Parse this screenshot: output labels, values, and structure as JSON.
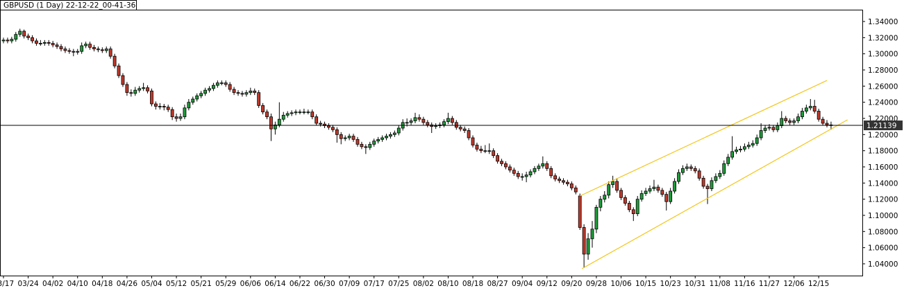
{
  "chart_data": {
    "type": "candlestick",
    "title": "GBPUSD (1 Day) 22-12-22_00-41-36",
    "up_color": "#1f9b3a",
    "down_color": "#c0392b",
    "ylim": [
      1.0254,
      1.3546
    ],
    "yticks": [
      {
        "value": 1.04,
        "label": "1.04000"
      },
      {
        "value": 1.06,
        "label": "1.06000"
      },
      {
        "value": 1.08,
        "label": "1.08000"
      },
      {
        "value": 1.1,
        "label": "1.10000"
      },
      {
        "value": 1.12,
        "label": "1.12000"
      },
      {
        "value": 1.14,
        "label": "1.14000"
      },
      {
        "value": 1.16,
        "label": "1.16000"
      },
      {
        "value": 1.18,
        "label": "1.18000"
      },
      {
        "value": 1.2,
        "label": "1.20000"
      },
      {
        "value": 1.22,
        "label": "1.22000"
      },
      {
        "value": 1.24,
        "label": "1.24000"
      },
      {
        "value": 1.26,
        "label": "1.26000"
      },
      {
        "value": 1.28,
        "label": "1.28000"
      },
      {
        "value": 1.3,
        "label": "1.30000"
      },
      {
        "value": 1.32,
        "label": "1.32000"
      },
      {
        "value": 1.34,
        "label": "1.34000"
      }
    ],
    "last_price": 1.21139,
    "channel_color": "#f5c518",
    "channel": [
      {
        "x": [
          140,
          200
        ],
        "y": [
          1.124,
          1.267
        ]
      },
      {
        "x": [
          140.5,
          205
        ],
        "y": [
          1.034,
          1.2183
        ]
      }
    ],
    "categories": [
      "03/17",
      null,
      null,
      null,
      null,
      null,
      "03/24",
      null,
      null,
      null,
      null,
      null,
      "04/02",
      null,
      null,
      null,
      null,
      null,
      "04/10",
      null,
      null,
      null,
      null,
      null,
      "04/18",
      null,
      null,
      null,
      null,
      null,
      "04/26",
      null,
      null,
      null,
      null,
      null,
      "05/04",
      null,
      null,
      null,
      null,
      null,
      "05/12",
      null,
      null,
      null,
      null,
      null,
      "05/21",
      null,
      null,
      null,
      null,
      null,
      "05/29",
      null,
      null,
      null,
      null,
      null,
      "06/06",
      null,
      null,
      null,
      null,
      null,
      "06/14",
      null,
      null,
      null,
      null,
      null,
      "06/22",
      null,
      null,
      null,
      null,
      null,
      "06/30",
      null,
      null,
      null,
      null,
      null,
      "07/09",
      null,
      null,
      null,
      null,
      null,
      "07/17",
      null,
      null,
      null,
      null,
      null,
      "07/25",
      null,
      null,
      null,
      null,
      null,
      "08/02",
      null,
      null,
      null,
      null,
      null,
      "08/10",
      null,
      null,
      null,
      null,
      null,
      "08/18",
      null,
      null,
      null,
      null,
      null,
      "08/27",
      null,
      null,
      null,
      null,
      null,
      "09/04",
      null,
      null,
      null,
      null,
      null,
      "09/12",
      null,
      null,
      null,
      null,
      null,
      "09/20",
      null,
      null,
      null,
      null,
      null,
      "09/28",
      null,
      null,
      null,
      null,
      null,
      "10/06",
      null,
      null,
      null,
      null,
      null,
      "10/15",
      null,
      null,
      null,
      null,
      null,
      "10/23",
      null,
      null,
      null,
      null,
      null,
      "10/31",
      null,
      null,
      null,
      null,
      null,
      "11/08",
      null,
      null,
      null,
      null,
      null,
      "11/16",
      null,
      null,
      null,
      null,
      null,
      "11/27",
      null,
      null,
      null,
      null,
      null,
      "12/06",
      null,
      null,
      null,
      null,
      null,
      "12/15",
      null,
      null,
      null
    ],
    "ohlc": [
      [
        1.316,
        1.32,
        1.313,
        1.317
      ],
      [
        1.317,
        1.32,
        1.313,
        1.316
      ],
      [
        1.316,
        1.321,
        1.313,
        1.318
      ],
      [
        1.318,
        1.327,
        1.315,
        1.324
      ],
      [
        1.324,
        1.331,
        1.321,
        1.328
      ],
      [
        1.328,
        1.33,
        1.319,
        1.322
      ],
      [
        1.322,
        1.325,
        1.317,
        1.32
      ],
      [
        1.32,
        1.323,
        1.313,
        1.316
      ],
      [
        1.316,
        1.319,
        1.31,
        1.313
      ],
      [
        1.313,
        1.317,
        1.31,
        1.313
      ],
      [
        1.313,
        1.317,
        1.31,
        1.314
      ],
      [
        1.314,
        1.317,
        1.31,
        1.313
      ],
      [
        1.313,
        1.316,
        1.308,
        1.311
      ],
      [
        1.311,
        1.314,
        1.306,
        1.309
      ],
      [
        1.309,
        1.312,
        1.303,
        1.306
      ],
      [
        1.306,
        1.309,
        1.301,
        1.304
      ],
      [
        1.304,
        1.307,
        1.3,
        1.303
      ],
      [
        1.303,
        1.306,
        1.297,
        1.302
      ],
      [
        1.302,
        1.306,
        1.299,
        1.303
      ],
      [
        1.303,
        1.314,
        1.3,
        1.31
      ],
      [
        1.31,
        1.315,
        1.307,
        1.312
      ],
      [
        1.312,
        1.315,
        1.305,
        1.308
      ],
      [
        1.308,
        1.311,
        1.303,
        1.306
      ],
      [
        1.306,
        1.309,
        1.302,
        1.305
      ],
      [
        1.305,
        1.308,
        1.301,
        1.304
      ],
      [
        1.304,
        1.309,
        1.301,
        1.306
      ],
      [
        1.306,
        1.309,
        1.294,
        1.297
      ],
      [
        1.297,
        1.3,
        1.282,
        1.285
      ],
      [
        1.285,
        1.288,
        1.27,
        1.273
      ],
      [
        1.273,
        1.276,
        1.259,
        1.262
      ],
      [
        1.262,
        1.265,
        1.248,
        1.252
      ],
      [
        1.252,
        1.256,
        1.247,
        1.251
      ],
      [
        1.251,
        1.259,
        1.248,
        1.255
      ],
      [
        1.255,
        1.26,
        1.252,
        1.257
      ],
      [
        1.257,
        1.264,
        1.254,
        1.258
      ],
      [
        1.258,
        1.261,
        1.251,
        1.254
      ],
      [
        1.254,
        1.257,
        1.235,
        1.238
      ],
      [
        1.238,
        1.241,
        1.231,
        1.235
      ],
      [
        1.235,
        1.239,
        1.231,
        1.235
      ],
      [
        1.235,
        1.238,
        1.23,
        1.234
      ],
      [
        1.234,
        1.237,
        1.228,
        1.231
      ],
      [
        1.231,
        1.234,
        1.218,
        1.222
      ],
      [
        1.222,
        1.226,
        1.216,
        1.22
      ],
      [
        1.22,
        1.226,
        1.217,
        1.222
      ],
      [
        1.222,
        1.237,
        1.219,
        1.233
      ],
      [
        1.233,
        1.244,
        1.23,
        1.24
      ],
      [
        1.24,
        1.247,
        1.237,
        1.244
      ],
      [
        1.244,
        1.251,
        1.241,
        1.248
      ],
      [
        1.248,
        1.254,
        1.245,
        1.251
      ],
      [
        1.251,
        1.258,
        1.248,
        1.255
      ],
      [
        1.255,
        1.26,
        1.252,
        1.257
      ],
      [
        1.257,
        1.264,
        1.254,
        1.261
      ],
      [
        1.261,
        1.267,
        1.258,
        1.264
      ],
      [
        1.264,
        1.267,
        1.261,
        1.264
      ],
      [
        1.264,
        1.267,
        1.259,
        1.262
      ],
      [
        1.262,
        1.265,
        1.253,
        1.256
      ],
      [
        1.256,
        1.259,
        1.249,
        1.252
      ],
      [
        1.252,
        1.255,
        1.248,
        1.251
      ],
      [
        1.251,
        1.254,
        1.247,
        1.25
      ],
      [
        1.25,
        1.255,
        1.247,
        1.252
      ],
      [
        1.252,
        1.258,
        1.249,
        1.254
      ],
      [
        1.254,
        1.257,
        1.249,
        1.252
      ],
      [
        1.252,
        1.255,
        1.233,
        1.236
      ],
      [
        1.236,
        1.239,
        1.225,
        1.228
      ],
      [
        1.228,
        1.231,
        1.219,
        1.222
      ],
      [
        1.222,
        1.226,
        1.192,
        1.207
      ],
      [
        1.207,
        1.216,
        1.2,
        1.212
      ],
      [
        1.212,
        1.24,
        1.209,
        1.219
      ],
      [
        1.219,
        1.228,
        1.216,
        1.224
      ],
      [
        1.224,
        1.229,
        1.221,
        1.226
      ],
      [
        1.226,
        1.23,
        1.223,
        1.227
      ],
      [
        1.227,
        1.231,
        1.224,
        1.228
      ],
      [
        1.228,
        1.231,
        1.225,
        1.228
      ],
      [
        1.228,
        1.232,
        1.225,
        1.228
      ],
      [
        1.228,
        1.231,
        1.225,
        1.228
      ],
      [
        1.228,
        1.231,
        1.219,
        1.222
      ],
      [
        1.222,
        1.225,
        1.211,
        1.214
      ],
      [
        1.214,
        1.217,
        1.21,
        1.213
      ],
      [
        1.213,
        1.216,
        1.208,
        1.211
      ],
      [
        1.211,
        1.214,
        1.206,
        1.209
      ],
      [
        1.209,
        1.212,
        1.203,
        1.206
      ],
      [
        1.206,
        1.209,
        1.19,
        1.2
      ],
      [
        1.2,
        1.203,
        1.188,
        1.195
      ],
      [
        1.195,
        1.199,
        1.192,
        1.196
      ],
      [
        1.196,
        1.201,
        1.193,
        1.198
      ],
      [
        1.198,
        1.201,
        1.191,
        1.194
      ],
      [
        1.194,
        1.197,
        1.185,
        1.188
      ],
      [
        1.188,
        1.191,
        1.182,
        1.185
      ],
      [
        1.185,
        1.188,
        1.176,
        1.184
      ],
      [
        1.184,
        1.191,
        1.181,
        1.188
      ],
      [
        1.188,
        1.195,
        1.185,
        1.192
      ],
      [
        1.192,
        1.197,
        1.189,
        1.194
      ],
      [
        1.194,
        1.199,
        1.191,
        1.196
      ],
      [
        1.196,
        1.201,
        1.193,
        1.198
      ],
      [
        1.198,
        1.203,
        1.195,
        1.2
      ],
      [
        1.2,
        1.205,
        1.197,
        1.202
      ],
      [
        1.202,
        1.211,
        1.199,
        1.208
      ],
      [
        1.208,
        1.219,
        1.205,
        1.215
      ],
      [
        1.215,
        1.22,
        1.21,
        1.215
      ],
      [
        1.215,
        1.22,
        1.212,
        1.217
      ],
      [
        1.217,
        1.227,
        1.214,
        1.221
      ],
      [
        1.221,
        1.225,
        1.216,
        1.219
      ],
      [
        1.219,
        1.222,
        1.212,
        1.215
      ],
      [
        1.215,
        1.218,
        1.209,
        1.212
      ],
      [
        1.212,
        1.215,
        1.202,
        1.21
      ],
      [
        1.21,
        1.214,
        1.207,
        1.211
      ],
      [
        1.211,
        1.215,
        1.208,
        1.212
      ],
      [
        1.212,
        1.219,
        1.209,
        1.216
      ],
      [
        1.216,
        1.227,
        1.213,
        1.22
      ],
      [
        1.22,
        1.223,
        1.212,
        1.215
      ],
      [
        1.215,
        1.218,
        1.206,
        1.209
      ],
      [
        1.209,
        1.212,
        1.204,
        1.207
      ],
      [
        1.207,
        1.21,
        1.202,
        1.205
      ],
      [
        1.205,
        1.208,
        1.193,
        1.196
      ],
      [
        1.196,
        1.199,
        1.184,
        1.187
      ],
      [
        1.187,
        1.19,
        1.179,
        1.182
      ],
      [
        1.182,
        1.186,
        1.177,
        1.18
      ],
      [
        1.18,
        1.187,
        1.177,
        1.18
      ],
      [
        1.18,
        1.189,
        1.176,
        1.18
      ],
      [
        1.18,
        1.183,
        1.171,
        1.174
      ],
      [
        1.174,
        1.177,
        1.164,
        1.167
      ],
      [
        1.167,
        1.17,
        1.161,
        1.164
      ],
      [
        1.164,
        1.167,
        1.157,
        1.16
      ],
      [
        1.16,
        1.163,
        1.153,
        1.156
      ],
      [
        1.156,
        1.159,
        1.149,
        1.152
      ],
      [
        1.152,
        1.155,
        1.145,
        1.148
      ],
      [
        1.148,
        1.152,
        1.143,
        1.148
      ],
      [
        1.148,
        1.154,
        1.141,
        1.15
      ],
      [
        1.15,
        1.157,
        1.147,
        1.154
      ],
      [
        1.154,
        1.161,
        1.151,
        1.158
      ],
      [
        1.158,
        1.164,
        1.155,
        1.161
      ],
      [
        1.161,
        1.173,
        1.158,
        1.164
      ],
      [
        1.164,
        1.167,
        1.155,
        1.158
      ],
      [
        1.158,
        1.161,
        1.146,
        1.149
      ],
      [
        1.149,
        1.152,
        1.142,
        1.145
      ],
      [
        1.145,
        1.148,
        1.14,
        1.143
      ],
      [
        1.143,
        1.146,
        1.138,
        1.141
      ],
      [
        1.141,
        1.144,
        1.136,
        1.139
      ],
      [
        1.139,
        1.142,
        1.131,
        1.134
      ],
      [
        1.134,
        1.137,
        1.126,
        1.129
      ],
      [
        1.124,
        1.127,
        1.082,
        1.085
      ],
      [
        1.085,
        1.089,
        1.035,
        1.052
      ],
      [
        1.052,
        1.078,
        1.045,
        1.071
      ],
      [
        1.071,
        1.093,
        1.06,
        1.083
      ],
      [
        1.083,
        1.113,
        1.078,
        1.11
      ],
      [
        1.11,
        1.124,
        1.105,
        1.12
      ],
      [
        1.12,
        1.13,
        1.116,
        1.125
      ],
      [
        1.125,
        1.142,
        1.121,
        1.138
      ],
      [
        1.138,
        1.149,
        1.134,
        1.142
      ],
      [
        1.142,
        1.146,
        1.128,
        1.131
      ],
      [
        1.131,
        1.134,
        1.119,
        1.122
      ],
      [
        1.122,
        1.125,
        1.112,
        1.115
      ],
      [
        1.115,
        1.118,
        1.104,
        1.107
      ],
      [
        1.107,
        1.11,
        1.093,
        1.102
      ],
      [
        1.102,
        1.124,
        1.099,
        1.12
      ],
      [
        1.12,
        1.131,
        1.117,
        1.127
      ],
      [
        1.127,
        1.134,
        1.124,
        1.13
      ],
      [
        1.13,
        1.137,
        1.127,
        1.133
      ],
      [
        1.133,
        1.144,
        1.13,
        1.135
      ],
      [
        1.135,
        1.138,
        1.128,
        1.131
      ],
      [
        1.131,
        1.134,
        1.123,
        1.126
      ],
      [
        1.126,
        1.129,
        1.106,
        1.117
      ],
      [
        1.117,
        1.134,
        1.114,
        1.13
      ],
      [
        1.13,
        1.146,
        1.127,
        1.142
      ],
      [
        1.142,
        1.157,
        1.139,
        1.153
      ],
      [
        1.153,
        1.162,
        1.15,
        1.158
      ],
      [
        1.158,
        1.164,
        1.155,
        1.16
      ],
      [
        1.16,
        1.163,
        1.155,
        1.158
      ],
      [
        1.158,
        1.161,
        1.152,
        1.155
      ],
      [
        1.155,
        1.158,
        1.143,
        1.146
      ],
      [
        1.146,
        1.149,
        1.133,
        1.136
      ],
      [
        1.136,
        1.139,
        1.114,
        1.133
      ],
      [
        1.133,
        1.147,
        1.13,
        1.143
      ],
      [
        1.143,
        1.152,
        1.14,
        1.148
      ],
      [
        1.148,
        1.156,
        1.145,
        1.152
      ],
      [
        1.152,
        1.168,
        1.149,
        1.164
      ],
      [
        1.164,
        1.176,
        1.161,
        1.172
      ],
      [
        1.172,
        1.198,
        1.169,
        1.179
      ],
      [
        1.179,
        1.185,
        1.176,
        1.181
      ],
      [
        1.181,
        1.186,
        1.178,
        1.182
      ],
      [
        1.182,
        1.189,
        1.179,
        1.185
      ],
      [
        1.185,
        1.191,
        1.182,
        1.187
      ],
      [
        1.187,
        1.193,
        1.184,
        1.189
      ],
      [
        1.189,
        1.2,
        1.186,
        1.196
      ],
      [
        1.196,
        1.214,
        1.193,
        1.205
      ],
      [
        1.205,
        1.212,
        1.202,
        1.208
      ],
      [
        1.208,
        1.213,
        1.205,
        1.209
      ],
      [
        1.209,
        1.212,
        1.203,
        1.206
      ],
      [
        1.206,
        1.215,
        1.203,
        1.211
      ],
      [
        1.211,
        1.229,
        1.208,
        1.22
      ],
      [
        1.22,
        1.223,
        1.214,
        1.217
      ],
      [
        1.217,
        1.22,
        1.212,
        1.215
      ],
      [
        1.215,
        1.22,
        1.212,
        1.217
      ],
      [
        1.217,
        1.226,
        1.214,
        1.222
      ],
      [
        1.222,
        1.233,
        1.219,
        1.229
      ],
      [
        1.229,
        1.237,
        1.226,
        1.233
      ],
      [
        1.233,
        1.244,
        1.23,
        1.235
      ],
      [
        1.235,
        1.243,
        1.226,
        1.229
      ],
      [
        1.229,
        1.232,
        1.216,
        1.219
      ],
      [
        1.219,
        1.222,
        1.211,
        1.214
      ],
      [
        1.214,
        1.218,
        1.209,
        1.212
      ],
      [
        1.212,
        1.216,
        1.206,
        1.2114
      ]
    ]
  }
}
